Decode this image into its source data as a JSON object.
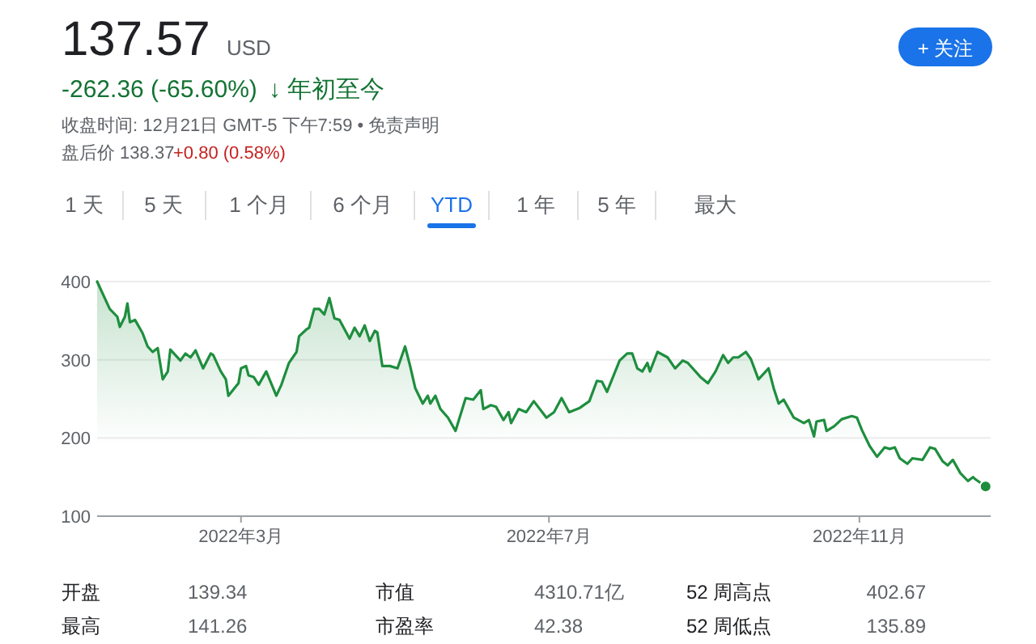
{
  "chart_data": {
    "type": "area",
    "color": "#1e8e3e",
    "x": [
      "2022-01-03",
      "2022-01-08",
      "2022-01-11",
      "2022-01-12",
      "2022-01-14",
      "2022-01-15",
      "2022-01-16",
      "2022-01-18",
      "2022-01-21",
      "2022-01-23",
      "2022-01-25",
      "2022-01-27",
      "2022-01-29",
      "2022-01-31",
      "2022-02-01",
      "2022-02-05",
      "2022-02-07",
      "2022-02-09",
      "2022-02-11",
      "2022-02-14",
      "2022-02-17",
      "2022-02-18",
      "2022-02-21",
      "2022-02-23",
      "2022-02-24",
      "2022-02-27",
      "2022-02-28",
      "2022-03-01",
      "2022-03-03",
      "2022-03-04",
      "2022-03-06",
      "2022-03-08",
      "2022-03-11",
      "2022-03-15",
      "2022-03-17",
      "2022-03-20",
      "2022-03-23",
      "2022-03-24",
      "2022-03-27",
      "2022-03-28",
      "2022-03-30",
      "2022-04-01",
      "2022-04-03",
      "2022-04-05",
      "2022-04-07",
      "2022-04-09",
      "2022-04-13",
      "2022-04-15",
      "2022-04-17",
      "2022-04-19",
      "2022-04-21",
      "2022-04-23",
      "2022-04-24",
      "2022-04-26",
      "2022-04-29",
      "2022-05-02",
      "2022-05-05",
      "2022-05-07",
      "2022-05-09",
      "2022-05-12",
      "2022-05-14",
      "2022-05-15",
      "2022-05-17",
      "2022-05-19",
      "2022-05-22",
      "2022-05-25",
      "2022-05-27",
      "2022-05-29",
      "2022-06-01",
      "2022-06-04",
      "2022-06-05",
      "2022-06-08",
      "2022-06-10",
      "2022-06-13",
      "2022-06-15",
      "2022-06-16",
      "2022-06-19",
      "2022-06-22",
      "2022-06-25",
      "2022-06-30",
      "2022-07-03",
      "2022-07-06",
      "2022-07-09",
      "2022-07-13",
      "2022-07-17",
      "2022-07-20",
      "2022-07-22",
      "2022-07-24",
      "2022-07-26",
      "2022-07-29",
      "2022-08-01",
      "2022-08-03",
      "2022-08-05",
      "2022-08-07",
      "2022-08-09",
      "2022-08-10",
      "2022-08-13",
      "2022-08-17",
      "2022-08-20",
      "2022-08-23",
      "2022-08-25",
      "2022-08-30",
      "2022-09-02",
      "2022-09-05",
      "2022-09-08",
      "2022-09-10",
      "2022-09-12",
      "2022-09-14",
      "2022-09-17",
      "2022-09-19",
      "2022-09-22",
      "2022-09-26",
      "2022-09-28",
      "2022-09-30",
      "2022-10-02",
      "2022-10-06",
      "2022-10-10",
      "2022-10-12",
      "2022-10-14",
      "2022-10-15",
      "2022-10-18",
      "2022-10-19",
      "2022-10-22",
      "2022-10-25",
      "2022-10-29",
      "2022-10-31",
      "2022-11-02",
      "2022-11-05",
      "2022-11-08",
      "2022-11-11",
      "2022-11-13",
      "2022-11-15",
      "2022-11-17",
      "2022-11-20",
      "2022-11-22",
      "2022-11-26",
      "2022-11-29",
      "2022-12-01",
      "2022-12-04",
      "2022-12-06",
      "2022-12-08",
      "2022-12-11",
      "2022-12-14",
      "2022-12-16",
      "2022-12-17",
      "2022-12-21"
    ],
    "values": [
      400,
      365,
      355,
      342,
      355,
      372,
      348,
      351,
      334,
      317,
      310,
      315,
      275,
      285,
      313,
      299,
      308,
      303,
      312,
      289,
      308,
      306,
      285,
      275,
      254,
      266,
      270,
      289,
      292,
      280,
      278,
      268,
      285,
      254,
      268,
      296,
      310,
      330,
      339,
      341,
      365,
      365,
      358,
      379,
      353,
      351,
      327,
      341,
      330,
      344,
      324,
      337,
      335,
      292,
      292,
      289,
      317,
      292,
      264,
      244,
      254,
      244,
      254,
      237,
      226,
      209,
      230,
      251,
      249,
      261,
      237,
      242,
      240,
      223,
      233,
      219,
      237,
      233,
      247,
      226,
      233,
      251,
      233,
      238,
      247,
      273,
      272,
      259,
      275,
      299,
      308,
      308,
      289,
      285,
      296,
      285,
      310,
      303,
      289,
      299,
      296,
      278,
      270,
      285,
      306,
      296,
      303,
      303,
      310,
      301,
      275,
      289,
      264,
      244,
      249,
      226,
      219,
      223,
      202,
      221,
      223,
      209,
      215,
      224,
      228,
      226,
      210,
      190,
      176,
      188,
      186,
      188,
      174,
      167,
      174,
      172,
      188,
      186,
      170,
      165,
      172,
      155,
      145,
      150,
      147,
      138
    ],
    "xlim": [
      "2022-01-03",
      "2022-12-23"
    ],
    "xticks": [
      {
        "value": "2022-03-01",
        "label": "2022年3月"
      },
      {
        "value": "2022-07-01",
        "label": "2022年7月"
      },
      {
        "value": "2022-11-01",
        "label": "2022年11月"
      }
    ],
    "ylim": [
      100,
      400
    ],
    "yticks": [
      100,
      200,
      300,
      400
    ],
    "grid": "y",
    "annotations": [
      "137.57",
      "USD",
      "-262.36 (-65.60%)",
      "↓ 年初至今",
      "收盘时间: 12月21日 GMT-5 下午7:59 • 免责声明",
      "盘后价 138.37",
      "+0.80 (0.58%)",
      "+ 关注",
      "1 天",
      "5 天",
      "1 个月",
      "6 个月",
      "YTD",
      "1 年",
      "5 年",
      "最大",
      "开盘",
      "139.34",
      "市值",
      "4310.71亿",
      "52 周高点",
      "402.67",
      "最高",
      "141.26",
      "市盈率",
      "42.38",
      "52 周低点",
      "135.89"
    ]
  }
}
